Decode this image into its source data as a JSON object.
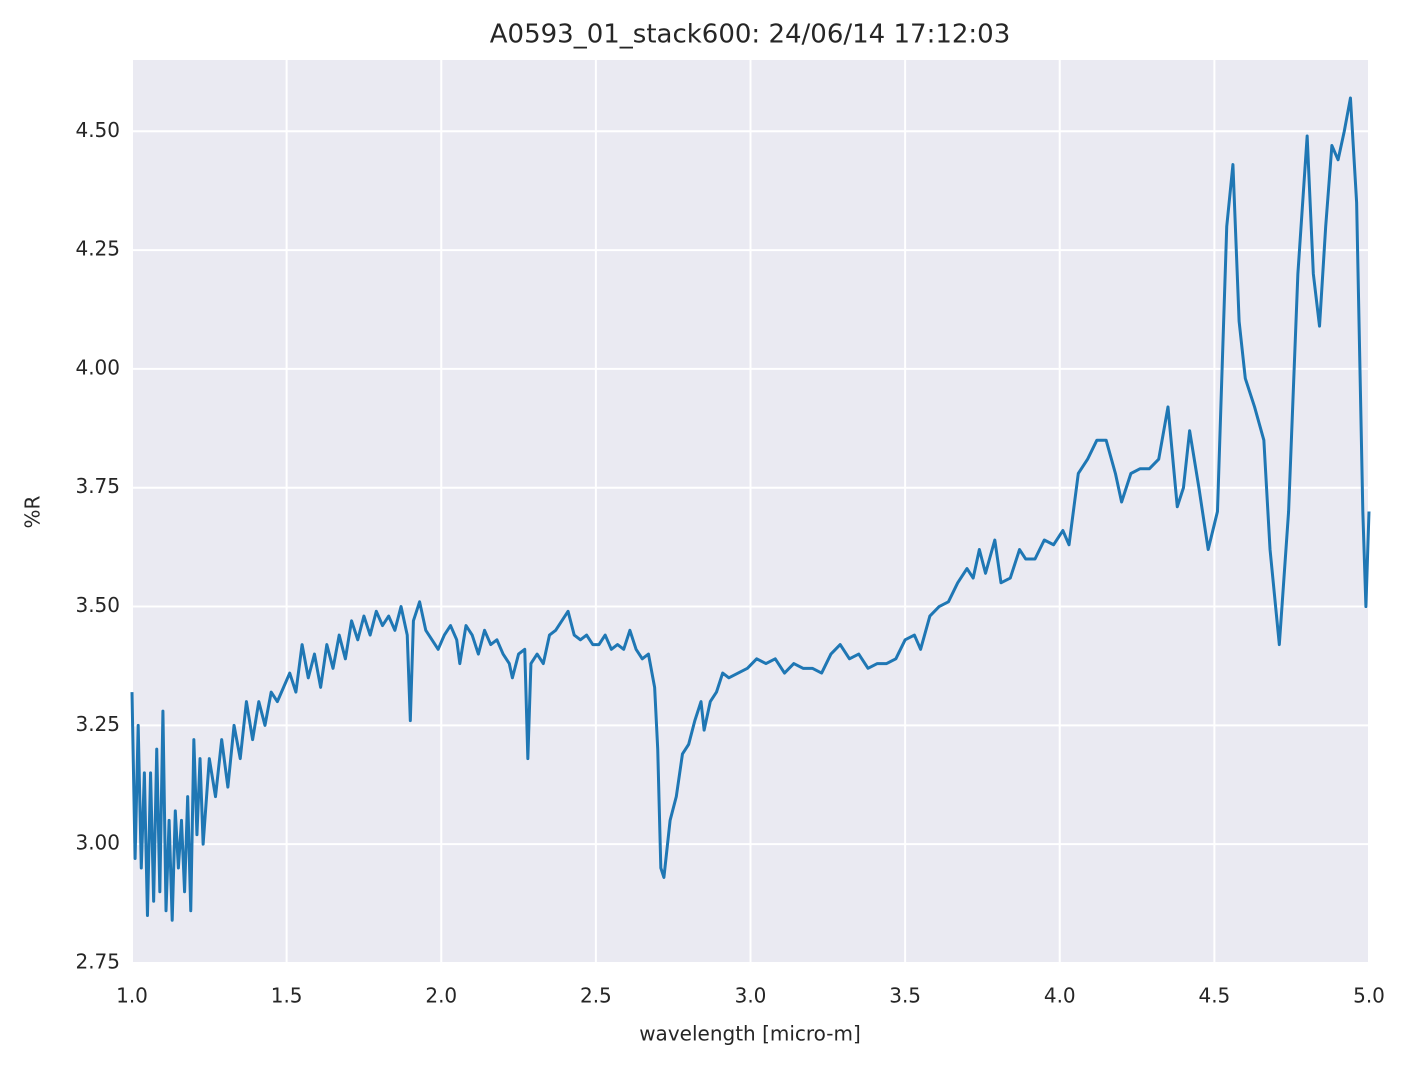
{
  "chart_data": {
    "type": "line",
    "title": "A0593_01_stack600:  24/06/14 17:12:03",
    "xlabel": "wavelength [micro-m]",
    "ylabel": "%R",
    "xlim": [
      1.0,
      5.0
    ],
    "ylim": [
      2.75,
      4.65
    ],
    "xticks": [
      {
        "value": 1.0,
        "label": "1.0"
      },
      1.5,
      {
        "value": 2.0,
        "label": "2.0"
      },
      2.5,
      {
        "value": 3.0,
        "label": "3.0"
      },
      3.5,
      {
        "value": 4.0,
        "label": "4.0"
      },
      4.5,
      {
        "value": 5.0,
        "label": "5.0"
      }
    ],
    "yticks": [
      2.75,
      {
        "value": 3.0,
        "label": "3.00"
      },
      3.25,
      {
        "value": 3.5,
        "label": "3.50"
      },
      3.75,
      {
        "value": 4.0,
        "label": "4.00"
      },
      4.25,
      {
        "value": 4.5,
        "label": "4.50"
      }
    ],
    "grid": true,
    "x": [
      1.0,
      1.01,
      1.02,
      1.03,
      1.04,
      1.05,
      1.06,
      1.07,
      1.08,
      1.09,
      1.1,
      1.11,
      1.12,
      1.13,
      1.14,
      1.15,
      1.16,
      1.17,
      1.18,
      1.19,
      1.2,
      1.21,
      1.22,
      1.23,
      1.25,
      1.27,
      1.29,
      1.31,
      1.33,
      1.35,
      1.37,
      1.39,
      1.41,
      1.43,
      1.45,
      1.47,
      1.49,
      1.51,
      1.53,
      1.55,
      1.57,
      1.59,
      1.61,
      1.63,
      1.65,
      1.67,
      1.69,
      1.71,
      1.73,
      1.75,
      1.77,
      1.79,
      1.81,
      1.83,
      1.85,
      1.87,
      1.89,
      1.9,
      1.91,
      1.93,
      1.95,
      1.97,
      1.99,
      2.01,
      2.03,
      2.05,
      2.06,
      2.08,
      2.1,
      2.12,
      2.14,
      2.16,
      2.18,
      2.2,
      2.22,
      2.23,
      2.25,
      2.27,
      2.28,
      2.29,
      2.31,
      2.33,
      2.35,
      2.37,
      2.39,
      2.41,
      2.43,
      2.45,
      2.47,
      2.49,
      2.51,
      2.53,
      2.55,
      2.57,
      2.59,
      2.61,
      2.63,
      2.65,
      2.67,
      2.69,
      2.7,
      2.71,
      2.72,
      2.74,
      2.76,
      2.78,
      2.8,
      2.82,
      2.84,
      2.85,
      2.87,
      2.89,
      2.91,
      2.93,
      2.96,
      2.99,
      3.02,
      3.05,
      3.08,
      3.11,
      3.14,
      3.17,
      3.2,
      3.23,
      3.26,
      3.29,
      3.32,
      3.35,
      3.38,
      3.41,
      3.44,
      3.47,
      3.5,
      3.53,
      3.55,
      3.58,
      3.61,
      3.64,
      3.67,
      3.7,
      3.72,
      3.74,
      3.76,
      3.79,
      3.81,
      3.84,
      3.87,
      3.89,
      3.92,
      3.95,
      3.98,
      4.01,
      4.03,
      4.06,
      4.09,
      4.12,
      4.15,
      4.18,
      4.2,
      4.23,
      4.26,
      4.29,
      4.32,
      4.35,
      4.38,
      4.4,
      4.42,
      4.45,
      4.48,
      4.51,
      4.54,
      4.56,
      4.58,
      4.6,
      4.63,
      4.66,
      4.68,
      4.71,
      4.74,
      4.77,
      4.8,
      4.82,
      4.84,
      4.86,
      4.88,
      4.9,
      4.92,
      4.94,
      4.96,
      4.98,
      4.99,
      5.0
    ],
    "series": [
      {
        "name": "%R",
        "color": "#1f77b4",
        "values": [
          3.32,
          2.97,
          3.25,
          2.95,
          3.15,
          2.85,
          3.15,
          2.88,
          3.2,
          2.9,
          3.28,
          2.86,
          3.05,
          2.84,
          3.07,
          2.95,
          3.05,
          2.9,
          3.1,
          2.86,
          3.22,
          3.02,
          3.18,
          3.0,
          3.18,
          3.1,
          3.22,
          3.12,
          3.25,
          3.18,
          3.3,
          3.22,
          3.3,
          3.25,
          3.32,
          3.3,
          3.33,
          3.36,
          3.32,
          3.42,
          3.35,
          3.4,
          3.33,
          3.42,
          3.37,
          3.44,
          3.39,
          3.47,
          3.43,
          3.48,
          3.44,
          3.49,
          3.46,
          3.48,
          3.45,
          3.5,
          3.44,
          3.26,
          3.47,
          3.51,
          3.45,
          3.43,
          3.41,
          3.44,
          3.46,
          3.43,
          3.38,
          3.46,
          3.44,
          3.4,
          3.45,
          3.42,
          3.43,
          3.4,
          3.38,
          3.35,
          3.4,
          3.41,
          3.18,
          3.38,
          3.4,
          3.38,
          3.44,
          3.45,
          3.47,
          3.49,
          3.44,
          3.43,
          3.44,
          3.42,
          3.42,
          3.44,
          3.41,
          3.42,
          3.41,
          3.45,
          3.41,
          3.39,
          3.4,
          3.33,
          3.2,
          2.95,
          2.93,
          3.05,
          3.1,
          3.19,
          3.21,
          3.26,
          3.3,
          3.24,
          3.3,
          3.32,
          3.36,
          3.35,
          3.36,
          3.37,
          3.39,
          3.38,
          3.39,
          3.36,
          3.38,
          3.37,
          3.37,
          3.36,
          3.4,
          3.42,
          3.39,
          3.4,
          3.37,
          3.38,
          3.38,
          3.39,
          3.43,
          3.44,
          3.41,
          3.48,
          3.5,
          3.51,
          3.55,
          3.58,
          3.56,
          3.62,
          3.57,
          3.64,
          3.55,
          3.56,
          3.62,
          3.6,
          3.6,
          3.64,
          3.63,
          3.66,
          3.63,
          3.78,
          3.81,
          3.85,
          3.85,
          3.78,
          3.72,
          3.78,
          3.79,
          3.79,
          3.81,
          3.92,
          3.71,
          3.75,
          3.87,
          3.75,
          3.62,
          3.7,
          4.3,
          4.43,
          4.1,
          3.98,
          3.92,
          3.85,
          3.62,
          3.42,
          3.7,
          4.2,
          4.49,
          4.2,
          4.09,
          4.3,
          4.47,
          4.44,
          4.5,
          4.57,
          4.35,
          3.7,
          3.5,
          3.7
        ]
      }
    ]
  }
}
